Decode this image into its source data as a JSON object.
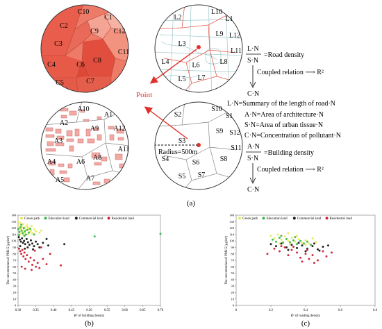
{
  "panel_a": {
    "caption": "(a)",
    "point_label": "Point",
    "radius_label": "Radius=500m",
    "circle_c": [
      "C10",
      "C1",
      "C2",
      "C9",
      "C12",
      "C3",
      "C11",
      "C8",
      "C4",
      "C6",
      "C5",
      "C7"
    ],
    "circle_l": [
      "L2",
      "L10",
      "L1",
      "L9",
      "L12",
      "L3",
      "L11",
      "L8",
      "L4",
      "L6",
      "L5",
      "L7"
    ],
    "circle_a": [
      "A10",
      "A1",
      "A2",
      "A9",
      "A12",
      "A3",
      "A11",
      "A8",
      "A4",
      "A6",
      "A5",
      "A7"
    ],
    "circle_s": [
      "S2",
      "S10",
      "S1",
      "S9",
      "S12",
      "S3",
      "S11",
      "S8",
      "S4",
      "S6",
      "S5",
      "S7"
    ],
    "road_formula": {
      "num": "L·N",
      "den": "S·N",
      "result": "=Road density"
    },
    "building_formula": {
      "num": "A·N",
      "den": "S·N",
      "result": "=Building density"
    },
    "coupled_label": "Coupled relation ⟶ R²",
    "concentration_symbol": "C·N",
    "legend_lines": [
      "L·N=Summary of the length of road·N",
      "A·N=Area of architecture·N",
      "S·N=Area of urban tissue·N",
      "C·N=Concentration of pollutant·N"
    ]
  },
  "chart_data": [
    {
      "type": "scatter",
      "panel": "(b)",
      "xlabel": "R² of building density",
      "ylabel": "The concentration of PM2.5 (μg/m³)",
      "xlim": [
        0.3,
        0.7
      ],
      "ylim": [
        0,
        140
      ],
      "xticks": [
        0.3,
        0.35,
        0.4,
        0.45,
        0.5,
        0.55,
        0.6,
        0.65,
        0.7
      ],
      "yticks": [
        0,
        10,
        20,
        30,
        40,
        50,
        60,
        70,
        80,
        90,
        100,
        110,
        120,
        130,
        140
      ],
      "legend": "top-left",
      "series": [
        {
          "name": "Green park",
          "color": "#e8e85c",
          "points": [
            [
              0.3,
              130
            ],
            [
              0.302,
              124
            ],
            [
              0.304,
              120
            ],
            [
              0.306,
              128
            ],
            [
              0.308,
              118
            ],
            [
              0.31,
              122
            ],
            [
              0.312,
              115
            ],
            [
              0.314,
              126
            ],
            [
              0.316,
              119
            ],
            [
              0.318,
              113
            ],
            [
              0.32,
              121
            ],
            [
              0.322,
              117
            ],
            [
              0.325,
              124
            ],
            [
              0.328,
              110
            ],
            [
              0.33,
              119
            ],
            [
              0.333,
              114
            ],
            [
              0.336,
              116
            ],
            [
              0.34,
              112
            ],
            [
              0.345,
              118
            ],
            [
              0.35,
              115
            ],
            [
              0.36,
              113
            ],
            [
              0.365,
              116
            ],
            [
              0.305,
              111
            ],
            [
              0.315,
              109
            ],
            [
              0.327,
              121
            ],
            [
              0.338,
              123
            ]
          ]
        },
        {
          "name": "Education land",
          "color": "#3cb54a",
          "points": [
            [
              0.301,
              118
            ],
            [
              0.304,
              114
            ],
            [
              0.307,
              121
            ],
            [
              0.31,
              116
            ],
            [
              0.313,
              112
            ],
            [
              0.316,
              120
            ],
            [
              0.319,
              115
            ],
            [
              0.322,
              110
            ],
            [
              0.326,
              117
            ],
            [
              0.33,
              113
            ],
            [
              0.334,
              119
            ],
            [
              0.303,
              109
            ],
            [
              0.309,
              125
            ],
            [
              0.318,
              108
            ],
            [
              0.345,
              110
            ],
            [
              0.515,
              107
            ],
            [
              0.7,
              111
            ]
          ]
        },
        {
          "name": "Commercial land",
          "color": "#1a1a1a",
          "points": [
            [
              0.302,
              106
            ],
            [
              0.305,
              102
            ],
            [
              0.308,
              99
            ],
            [
              0.311,
              104
            ],
            [
              0.314,
              97
            ],
            [
              0.317,
              100
            ],
            [
              0.32,
              95
            ],
            [
              0.324,
              103
            ],
            [
              0.328,
              98
            ],
            [
              0.332,
              94
            ],
            [
              0.336,
              101
            ],
            [
              0.34,
              96
            ],
            [
              0.345,
              92
            ],
            [
              0.35,
              99
            ],
            [
              0.355,
              95
            ],
            [
              0.36,
              90
            ],
            [
              0.37,
              97
            ],
            [
              0.38,
              103
            ],
            [
              0.385,
              93
            ],
            [
              0.43,
              95
            ],
            [
              0.306,
              92
            ],
            [
              0.319,
              88
            ],
            [
              0.327,
              90
            ],
            [
              0.342,
              87
            ]
          ]
        },
        {
          "name": "Residential land",
          "color": "#cc2233",
          "points": [
            [
              0.303,
              88
            ],
            [
              0.306,
              84
            ],
            [
              0.309,
              80
            ],
            [
              0.312,
              86
            ],
            [
              0.315,
              76
            ],
            [
              0.318,
              82
            ],
            [
              0.321,
              72
            ],
            [
              0.325,
              78
            ],
            [
              0.33,
              68
            ],
            [
              0.335,
              74
            ],
            [
              0.34,
              63
            ],
            [
              0.345,
              70
            ],
            [
              0.35,
              60
            ],
            [
              0.355,
              66
            ],
            [
              0.36,
              58
            ],
            [
              0.37,
              72
            ],
            [
              0.38,
              64
            ],
            [
              0.39,
              80
            ],
            [
              0.42,
              62
            ],
            [
              0.31,
              60
            ],
            [
              0.32,
              57
            ],
            [
              0.338,
              55
            ],
            [
              0.347,
              85
            ],
            [
              0.365,
              90
            ]
          ]
        }
      ]
    },
    {
      "type": "scatter",
      "panel": "(c)",
      "xlabel": "R² of roading density",
      "ylabel": "The concentration of PM2.5 (μg/m³)",
      "xlim": [
        0,
        0.8
      ],
      "ylim": [
        0,
        140
      ],
      "xticks": [
        0,
        0.2,
        0.4,
        0.6,
        0.8
      ],
      "yticks": [
        0,
        10,
        20,
        30,
        40,
        50,
        60,
        70,
        80,
        90,
        100,
        110,
        120,
        130,
        140
      ],
      "legend": "top-left",
      "series": [
        {
          "name": "Green park",
          "color": "#e8e85c",
          "points": [
            [
              0.2,
              108
            ],
            [
              0.22,
              104
            ],
            [
              0.24,
              110
            ],
            [
              0.26,
              102
            ],
            [
              0.28,
              107
            ],
            [
              0.3,
              100
            ],
            [
              0.32,
              105
            ],
            [
              0.34,
              99
            ],
            [
              0.36,
              103
            ],
            [
              0.38,
              97
            ],
            [
              0.4,
              101
            ],
            [
              0.42,
              96
            ],
            [
              0.44,
              104
            ],
            [
              0.25,
              96
            ],
            [
              0.3,
              112
            ],
            [
              0.35,
              108
            ],
            [
              0.46,
              98
            ],
            [
              0.27,
              99
            ],
            [
              0.31,
              95
            ],
            [
              0.4,
              94
            ]
          ]
        },
        {
          "name": "Education land",
          "color": "#3cb54a",
          "points": [
            [
              0.21,
              102
            ],
            [
              0.23,
              99
            ],
            [
              0.25,
              105
            ],
            [
              0.27,
              97
            ],
            [
              0.29,
              103
            ],
            [
              0.31,
              98
            ],
            [
              0.33,
              101
            ],
            [
              0.35,
              95
            ],
            [
              0.37,
              100
            ],
            [
              0.39,
              96
            ],
            [
              0.41,
              99
            ],
            [
              0.43,
              94
            ],
            [
              0.26,
              108
            ],
            [
              0.34,
              106
            ]
          ]
        },
        {
          "name": "Commercial land",
          "color": "#1a1a1a",
          "points": [
            [
              0.2,
              95
            ],
            [
              0.23,
              92
            ],
            [
              0.26,
              96
            ],
            [
              0.29,
              90
            ],
            [
              0.32,
              94
            ],
            [
              0.35,
              89
            ],
            [
              0.38,
              93
            ],
            [
              0.41,
              88
            ],
            [
              0.44,
              92
            ],
            [
              0.47,
              87
            ],
            [
              0.5,
              91
            ],
            [
              0.53,
              93
            ],
            [
              0.3,
              86
            ],
            [
              0.4,
              84
            ],
            [
              0.48,
              85
            ],
            [
              0.36,
              97
            ],
            [
              0.45,
              96
            ]
          ]
        },
        {
          "name": "Residential land",
          "color": "#cc2233",
          "points": [
            [
              0.18,
              80
            ],
            [
              0.22,
              88
            ],
            [
              0.25,
              84
            ],
            [
              0.28,
              90
            ],
            [
              0.3,
              78
            ],
            [
              0.32,
              86
            ],
            [
              0.35,
              82
            ],
            [
              0.37,
              74
            ],
            [
              0.4,
              80
            ],
            [
              0.42,
              72
            ],
            [
              0.44,
              78
            ],
            [
              0.47,
              70
            ],
            [
              0.5,
              84
            ],
            [
              0.52,
              76
            ],
            [
              0.38,
              68
            ],
            [
              0.45,
              66
            ],
            [
              0.26,
              92
            ],
            [
              0.33,
              91
            ],
            [
              0.55,
              82
            ],
            [
              0.41,
              86
            ]
          ]
        }
      ]
    }
  ]
}
